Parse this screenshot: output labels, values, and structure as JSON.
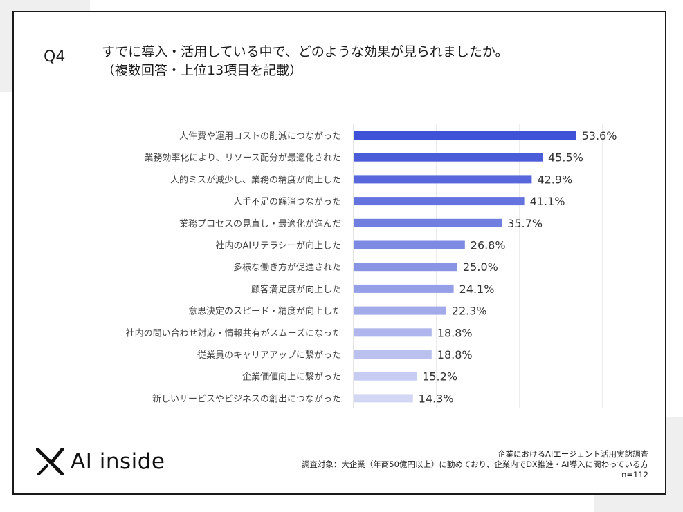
{
  "header": {
    "question_no": "Q4",
    "title_line1": "すでに導入・活用している中で、どのような効果が見られましたか。",
    "title_line2": "（複数回答・上位13項目を記載）"
  },
  "chart_data": {
    "type": "bar",
    "orientation": "horizontal",
    "categories": [
      "人件費や運用コストの削減につながった",
      "業務効率化により、リソース配分が最適化された",
      "人的ミスが減少し、業務の精度が向上した",
      "人手不足の解消つながった",
      "業務プロセスの見直し・最適化が進んだ",
      "社内のAIリテラシーが向上した",
      "多様な働き方が促進された",
      "顧客満足度が向上した",
      "意思決定のスピード・精度が向上した",
      "社内の問い合わせ対応・情報共有がスムーズになった",
      "従業員のキャリアアップに繋がった",
      "企業価値向上に繋がった",
      "新しいサービスやビジネスの創出につながった"
    ],
    "values": [
      53.6,
      45.5,
      42.9,
      41.1,
      35.7,
      26.8,
      25.0,
      24.1,
      22.3,
      18.8,
      18.8,
      15.2,
      14.3
    ],
    "value_labels": [
      "53.6%",
      "45.5%",
      "42.9%",
      "41.1%",
      "35.7%",
      "26.8%",
      "25.0%",
      "24.1%",
      "22.3%",
      "18.8%",
      "18.8%",
      "15.2%",
      "14.3%"
    ],
    "unit": "%",
    "xlim": [
      0,
      60
    ],
    "grid": true,
    "colors": {
      "bar_start": "#3f51d6",
      "bar_end": "#d3d7f4",
      "grid": "#d9d9d9"
    }
  },
  "brand": {
    "logo_text": "AI inside",
    "logo_icon": "x-mark-icon"
  },
  "footer": {
    "survey_name": "企業におけるAIエージェント活用実態調査",
    "target": "調査対象：大企業（年商50億円以上）に勤めており、企業内でDX推進・AI導入に関わっている方",
    "sample": "n=112"
  }
}
